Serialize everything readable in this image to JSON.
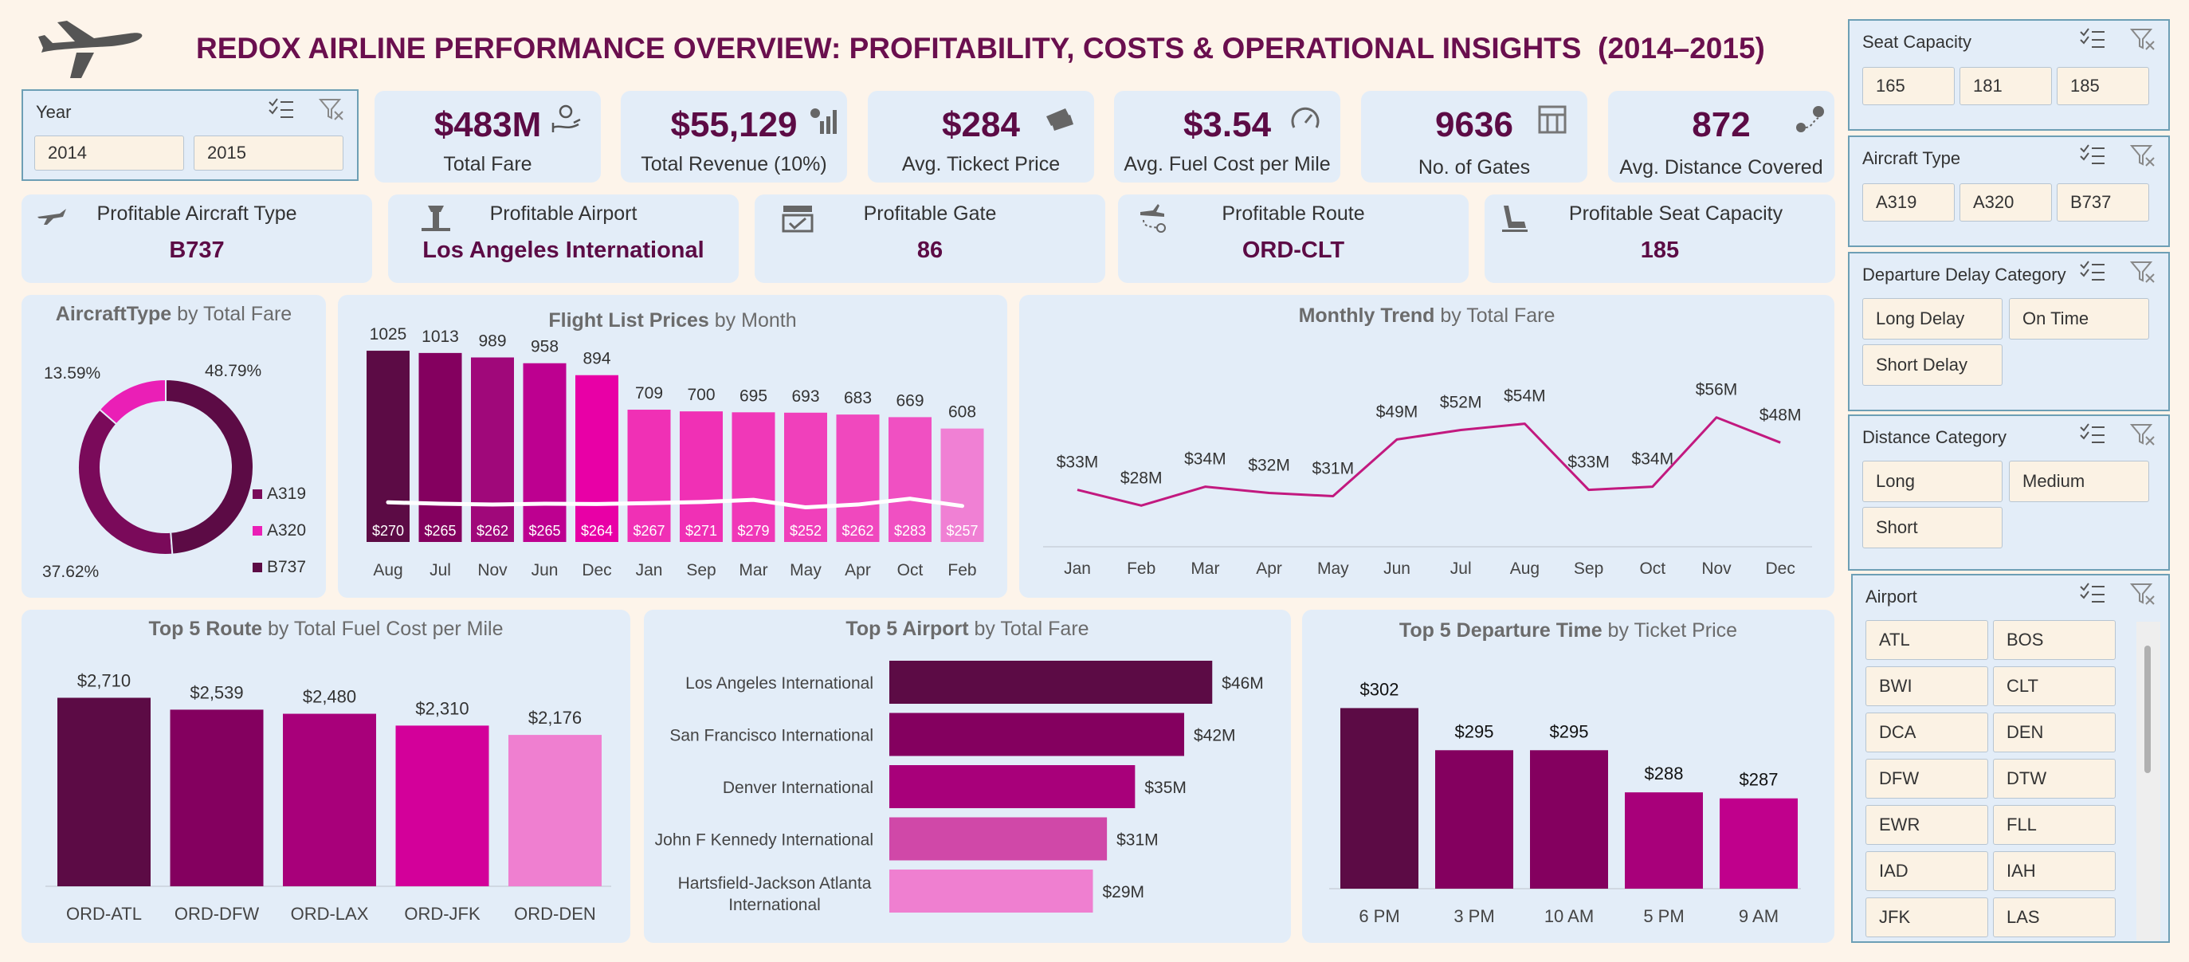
{
  "header": {
    "title": "REDOX AIRLINE PERFORMANCE OVERVIEW: PROFITABILITY, COSTS & OPERATIONAL INSIGHTS  (2014–2015)"
  },
  "slicers": {
    "year": {
      "title": "Year",
      "items": [
        "2014",
        "2015"
      ]
    },
    "seat_capacity": {
      "title": "Seat Capacity",
      "items": [
        "165",
        "181",
        "185"
      ]
    },
    "aircraft_type": {
      "title": "Aircraft Type",
      "items": [
        "A319",
        "A320",
        "B737"
      ]
    },
    "departure_delay": {
      "title": "Departure Delay Category",
      "items": [
        "Long Delay",
        "On Time",
        "Short Delay"
      ]
    },
    "distance": {
      "title": "Distance Category",
      "items": [
        "Long",
        "Medium",
        "Short"
      ]
    },
    "airport": {
      "title": "Airport",
      "items": [
        "ATL",
        "BOS",
        "BWI",
        "CLT",
        "DCA",
        "DEN",
        "DFW",
        "DTW",
        "EWR",
        "FLL",
        "IAD",
        "IAH",
        "JFK",
        "LAS"
      ]
    }
  },
  "kpis": [
    {
      "value": "$483M",
      "label": "Total Fare",
      "icon": "money-hand-icon"
    },
    {
      "value": "$55,129",
      "label": "Total Revenue (10%)",
      "icon": "revenue-chart-icon"
    },
    {
      "value": "$284",
      "label": "Avg. Tickect Price",
      "icon": "ticket-icon"
    },
    {
      "value": "$3.54",
      "label": "Avg. Fuel Cost per Mile",
      "icon": "gauge-icon"
    },
    {
      "value": "9636",
      "label": "No. of Gates",
      "icon": "gate-icon"
    },
    {
      "value": "872",
      "label": "Avg. Distance Covered",
      "icon": "route-pin-icon"
    }
  ],
  "profitable": [
    {
      "label": "Profitable Aircraft Type",
      "value": "B737",
      "icon": "airplane-icon"
    },
    {
      "label": "Profitable Airport",
      "value": "Los Angeles International",
      "icon": "airport-tower-icon"
    },
    {
      "label": "Profitable Gate",
      "value": "86",
      "icon": "gate-board-icon"
    },
    {
      "label": "Profitable Route",
      "value": "ORD-CLT",
      "icon": "route-plane-icon"
    },
    {
      "label": "Profitable Seat Capacity",
      "value": "185",
      "icon": "seat-icon"
    }
  ],
  "chart_titles": {
    "donut": {
      "bold": "AircraftType",
      "rest": " by Total Fare"
    },
    "flight_prices": {
      "bold": "Flight List Prices",
      "rest": " by Month"
    },
    "monthly_trend": {
      "bold": "Monthly Trend",
      "rest": " by Total Fare"
    },
    "top_route": {
      "bold": "Top 5 Route",
      "rest": " by  Total Fuel  Cost per Mile"
    },
    "top_airport": {
      "bold": "Top 5 Airport",
      "rest": " by Total Fare"
    },
    "top_departure": {
      "bold": "Top 5 Departure Time",
      "rest": " by Ticket Price"
    }
  },
  "colors": {
    "dark": "#5c0b45",
    "plum": "#84005f",
    "magenta": "#a8007a",
    "pink": "#d3009a",
    "light_pink": "#ef7fd0",
    "line": "#c2197f"
  },
  "chart_data": [
    {
      "type": "pie",
      "id": "aircraft_donut",
      "categories": [
        "A319",
        "A320",
        "B737"
      ],
      "percent_labels": [
        "37.62%",
        "13.59%",
        "48.79%"
      ],
      "values": [
        37.62,
        13.59,
        48.79
      ],
      "colors": [
        "#7a0a5a",
        "#ea1fb6",
        "#5c0b45"
      ]
    },
    {
      "type": "bar",
      "id": "flight_list_prices",
      "categories": [
        "Aug",
        "Jul",
        "Nov",
        "Jun",
        "Dec",
        "Jan",
        "Sep",
        "Mar",
        "May",
        "Apr",
        "Oct",
        "Feb"
      ],
      "values": [
        1025,
        1013,
        989,
        958,
        894,
        709,
        700,
        695,
        693,
        683,
        669,
        608
      ],
      "value_labels": [
        "1025",
        "1013",
        "989",
        "958",
        "894",
        "709",
        "700",
        "695",
        "693",
        "683",
        "669",
        "608"
      ],
      "avg_ticket": [
        270,
        265,
        262,
        265,
        264,
        267,
        271,
        279,
        252,
        262,
        283,
        257
      ],
      "avg_ticket_labels": [
        "$270",
        "$265",
        "$262",
        "$265",
        "$264",
        "$267",
        "$271",
        "$279",
        "$252",
        "$262",
        "$283",
        "$257"
      ],
      "colors": [
        "#5c0b45",
        "#84005f",
        "#a0087a",
        "#bd0090",
        "#e800a6",
        "#f030b5",
        "#f030b5",
        "#f038b8",
        "#f040bb",
        "#f048be",
        "#f050c2",
        "#f080d4"
      ],
      "ylim": [
        0,
        1100
      ]
    },
    {
      "type": "line",
      "id": "monthly_trend",
      "categories": [
        "Jan",
        "Feb",
        "Mar",
        "Apr",
        "May",
        "Jun",
        "Jul",
        "Aug",
        "Sep",
        "Oct",
        "Nov",
        "Dec"
      ],
      "values": [
        33,
        28,
        34,
        32,
        31,
        49,
        52,
        54,
        33,
        34,
        56,
        48
      ],
      "value_labels": [
        "$33M",
        "$28M",
        "$34M",
        "$32M",
        "$31M",
        "$49M",
        "$52M",
        "$54M",
        "$33M",
        "$34M",
        "$56M",
        "$48M"
      ],
      "ylim": [
        0,
        62
      ]
    },
    {
      "type": "bar",
      "id": "top_route",
      "categories": [
        "ORD-ATL",
        "ORD-DFW",
        "ORD-LAX",
        "ORD-JFK",
        "ORD-DEN"
      ],
      "values": [
        2710,
        2539,
        2480,
        2310,
        2176
      ],
      "value_labels": [
        "$2,710",
        "$2,539",
        "$2,480",
        "$2,310",
        "$2,176"
      ],
      "colors": [
        "#5c0b45",
        "#84005f",
        "#a8007a",
        "#d3009a",
        "#ef7fd0"
      ],
      "ylim": [
        0,
        3150
      ]
    },
    {
      "type": "bar",
      "id": "top_airport",
      "orientation": "horizontal",
      "categories": [
        "Los Angeles International",
        "San Francisco International",
        "Denver International",
        "John F Kennedy International",
        "Hartsfield-Jackson Atlanta International"
      ],
      "values": [
        46,
        42,
        35,
        31,
        29
      ],
      "value_labels": [
        "$46M",
        "$42M",
        "$35M",
        "$31M",
        "$29M"
      ],
      "colors": [
        "#5c0b45",
        "#84005f",
        "#a8007a",
        "#d048a8",
        "#ef7fd0"
      ],
      "xlim": [
        0,
        50
      ]
    },
    {
      "type": "bar",
      "id": "top_departure",
      "categories": [
        "6 PM",
        "3 PM",
        "10 AM",
        "5 PM",
        "9 AM"
      ],
      "values": [
        302,
        295,
        295,
        288,
        287
      ],
      "value_labels": [
        "$302",
        "$295",
        "$295",
        "$288",
        "$287"
      ],
      "colors": [
        "#5c0b45",
        "#84005f",
        "#84005f",
        "#a8007a",
        "#c0008c"
      ],
      "ylim": [
        272,
        305
      ]
    }
  ]
}
